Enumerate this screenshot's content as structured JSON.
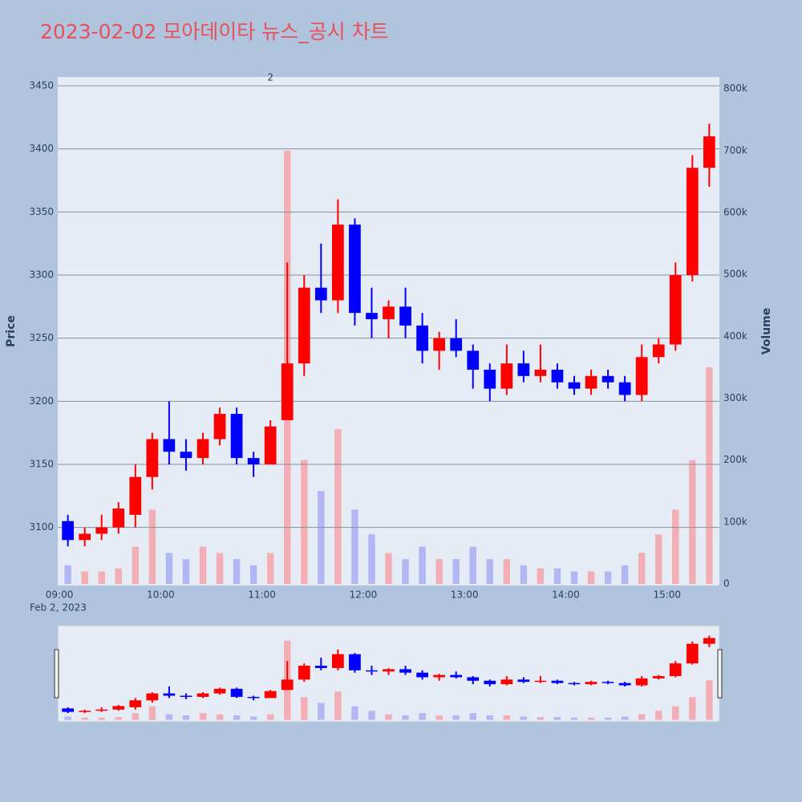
{
  "chart_data": {
    "type": "candlestick",
    "title": "2023-02-02 모아데이타 뉴스_공시 차트",
    "x": [
      "09:00",
      "09:10",
      "09:20",
      "09:30",
      "09:40",
      "09:50",
      "10:00",
      "10:10",
      "10:20",
      "10:30",
      "10:40",
      "10:50",
      "11:00",
      "11:10",
      "11:20",
      "11:30",
      "11:40",
      "11:50",
      "12:00",
      "12:10",
      "12:20",
      "12:30",
      "12:40",
      "12:50",
      "13:00",
      "13:10",
      "13:20",
      "13:30",
      "13:40",
      "13:50",
      "14:00",
      "14:10",
      "14:20",
      "14:30",
      "14:40",
      "14:50",
      "15:00",
      "15:10",
      "15:20"
    ],
    "open": [
      3105,
      3090,
      3095,
      3100,
      3110,
      3140,
      3170,
      3160,
      3155,
      3170,
      3190,
      3155,
      3150,
      3185,
      3230,
      3290,
      3280,
      3340,
      3270,
      3265,
      3275,
      3260,
      3240,
      3250,
      3240,
      3225,
      3210,
      3230,
      3220,
      3225,
      3215,
      3210,
      3220,
      3215,
      3205,
      3235,
      3245,
      3300,
      3385
    ],
    "high": [
      3110,
      3100,
      3110,
      3120,
      3150,
      3175,
      3200,
      3170,
      3175,
      3195,
      3195,
      3160,
      3185,
      3310,
      3300,
      3325,
      3360,
      3345,
      3290,
      3280,
      3290,
      3270,
      3255,
      3265,
      3245,
      3230,
      3245,
      3240,
      3245,
      3230,
      3220,
      3225,
      3225,
      3220,
      3245,
      3250,
      3310,
      3395,
      3420
    ],
    "low": [
      3085,
      3085,
      3090,
      3095,
      3100,
      3130,
      3150,
      3145,
      3150,
      3165,
      3150,
      3140,
      3150,
      3185,
      3220,
      3270,
      3270,
      3260,
      3250,
      3250,
      3250,
      3230,
      3225,
      3235,
      3210,
      3200,
      3205,
      3215,
      3215,
      3210,
      3205,
      3205,
      3210,
      3200,
      3200,
      3230,
      3240,
      3295,
      3370
    ],
    "close": [
      3090,
      3095,
      3100,
      3115,
      3140,
      3170,
      3160,
      3155,
      3170,
      3190,
      3155,
      3150,
      3180,
      3230,
      3290,
      3280,
      3340,
      3270,
      3265,
      3275,
      3260,
      3240,
      3250,
      3240,
      3225,
      3210,
      3230,
      3220,
      3225,
      3215,
      3210,
      3220,
      3215,
      3205,
      3235,
      3245,
      3300,
      3385,
      3410
    ],
    "volume": [
      30000,
      20000,
      20000,
      25000,
      60000,
      120000,
      50000,
      40000,
      60000,
      50000,
      40000,
      30000,
      50000,
      700000,
      200000,
      150000,
      250000,
      120000,
      80000,
      50000,
      40000,
      60000,
      40000,
      40000,
      60000,
      40000,
      40000,
      30000,
      25000,
      25000,
      20000,
      20000,
      20000,
      30000,
      50000,
      80000,
      120000,
      200000,
      350000
    ],
    "up_color": "#ff0000",
    "down_color": "#0000ff",
    "volume_up_color": "#f4a3a8",
    "volume_down_color": "#a9aef2",
    "xlim": [
      "08:59",
      "15:31"
    ],
    "xticks": [
      "09:00",
      "10:00",
      "11:00",
      "12:00",
      "13:00",
      "14:00",
      "15:00"
    ],
    "x_date_label": "Feb 2, 2023",
    "ylim": [
      3054,
      3457
    ],
    "yticks": [
      3100,
      3150,
      3200,
      3250,
      3300,
      3350,
      3400,
      3450
    ],
    "y2lim": [
      -2600,
      819000
    ],
    "y2ticks": [
      0,
      {
        "value": 100000,
        "label": "100k"
      },
      {
        "value": 200000,
        "label": "200k"
      },
      {
        "value": 300000,
        "label": "300k"
      },
      {
        "value": 400000,
        "label": "400k"
      },
      {
        "value": 500000,
        "label": "500k"
      },
      {
        "value": 600000,
        "label": "600k"
      },
      {
        "value": 700000,
        "label": "700k"
      },
      {
        "value": 800000,
        "label": "800k"
      }
    ],
    "ylabel": "Price",
    "y2label": "Volume",
    "annotation": {
      "x": "11:05",
      "text": "2"
    },
    "grid": true,
    "rangeslider": true
  }
}
